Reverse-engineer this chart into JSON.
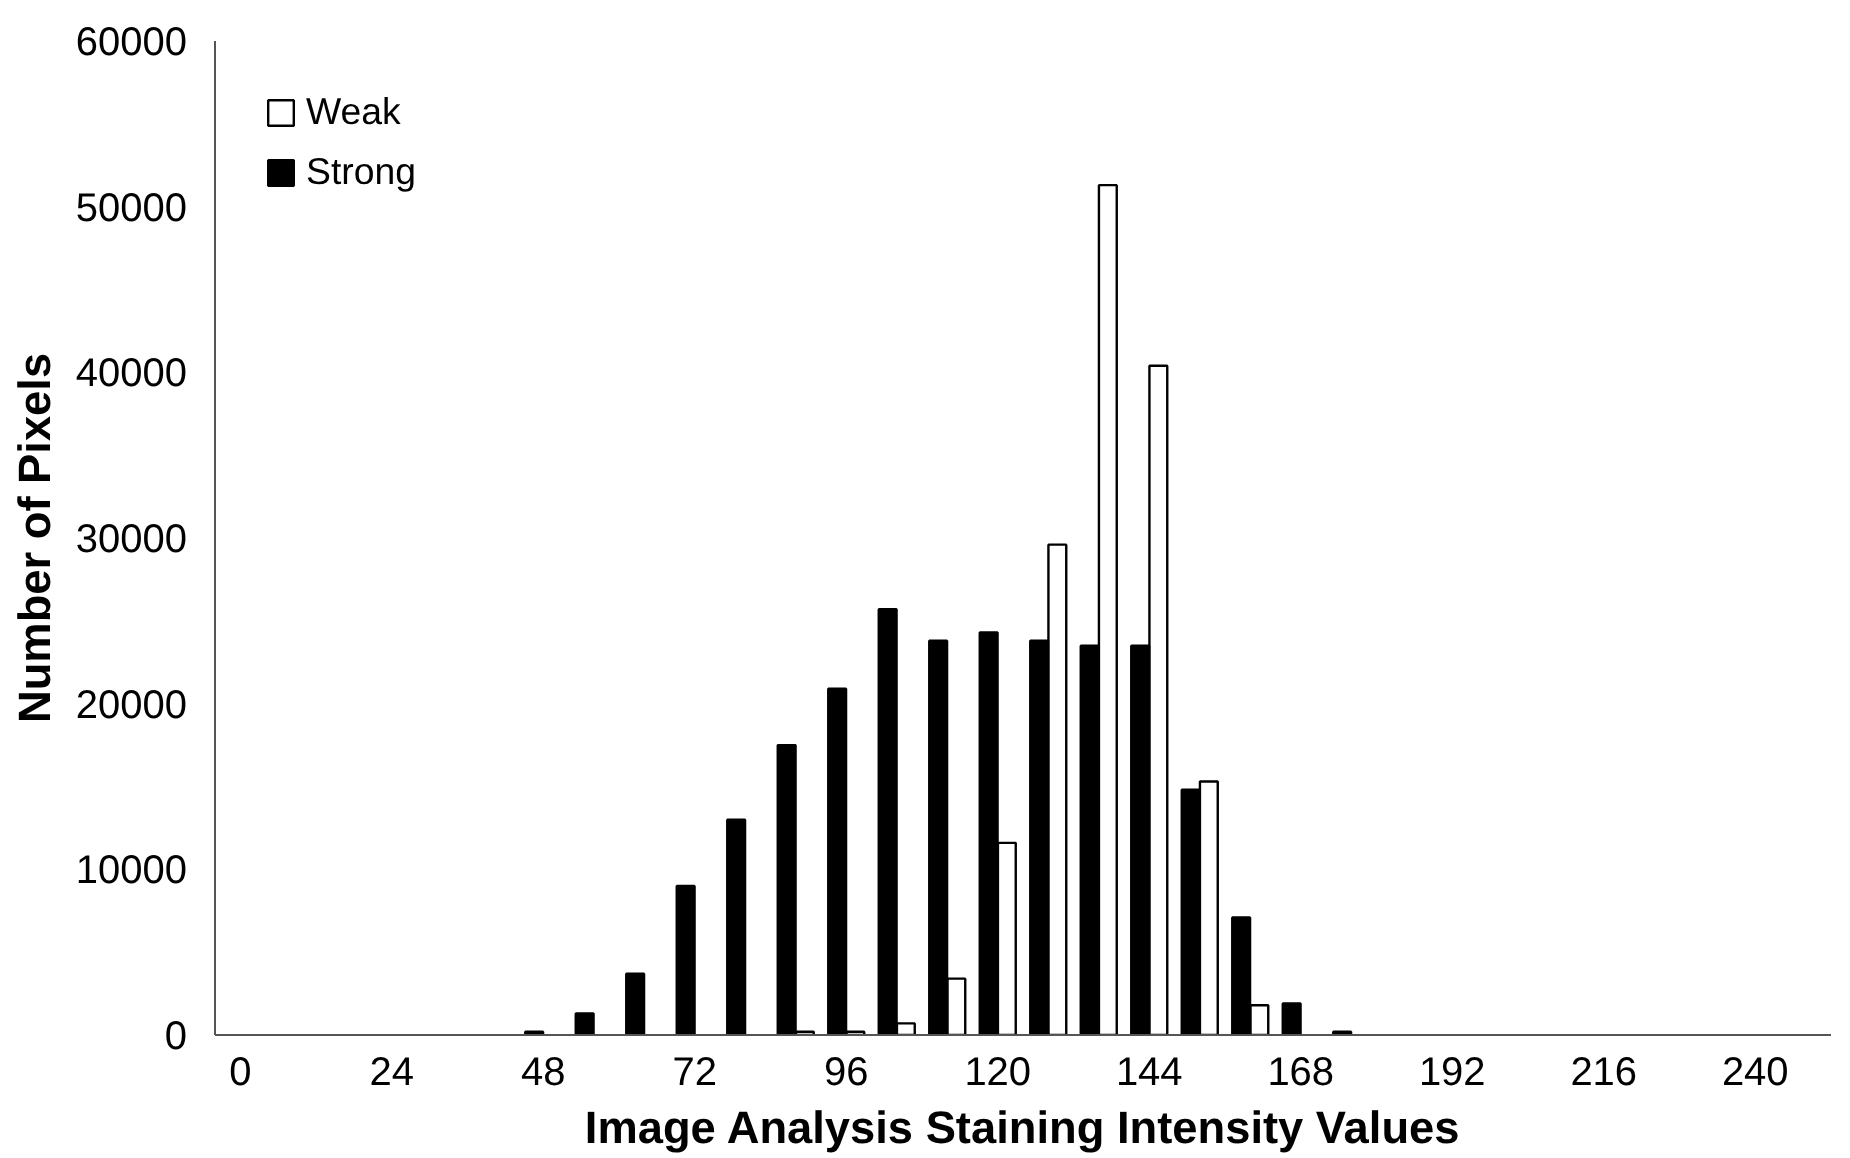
{
  "chart_data": {
    "type": "bar",
    "xlabel": "Image Analysis Staining Intensity Values",
    "ylabel": "Number of Pixels",
    "categories": [
      "0",
      null,
      null,
      "24",
      null,
      null,
      "48",
      null,
      null,
      "72",
      null,
      null,
      "96",
      null,
      null,
      "120",
      null,
      null,
      "144",
      null,
      null,
      "168",
      null,
      null,
      "192",
      null,
      null,
      "216",
      null,
      null,
      "240",
      null
    ],
    "series": [
      {
        "name": "Weak",
        "color": "#ffffff",
        "values": [
          null,
          null,
          null,
          null,
          null,
          null,
          null,
          null,
          null,
          null,
          null,
          200,
          200,
          700,
          3400,
          11600,
          29600,
          51300,
          40400,
          15300,
          1800,
          null,
          null,
          null,
          null,
          null,
          null,
          null,
          null,
          null,
          null,
          null
        ]
      },
      {
        "name": "Strong",
        "color": "#000000",
        "values": [
          null,
          null,
          null,
          null,
          null,
          null,
          200,
          1300,
          3700,
          9000,
          13000,
          17500,
          20900,
          25700,
          23800,
          24300,
          23800,
          23500,
          23500,
          14800,
          7100,
          1900,
          200,
          null,
          null,
          null,
          null,
          null,
          null,
          null,
          null,
          null
        ]
      }
    ],
    "ylim": [
      0,
      60000
    ],
    "yticks": [
      0,
      10000,
      20000,
      30000,
      40000,
      50000,
      60000
    ],
    "grid": false,
    "legend": "top left"
  }
}
